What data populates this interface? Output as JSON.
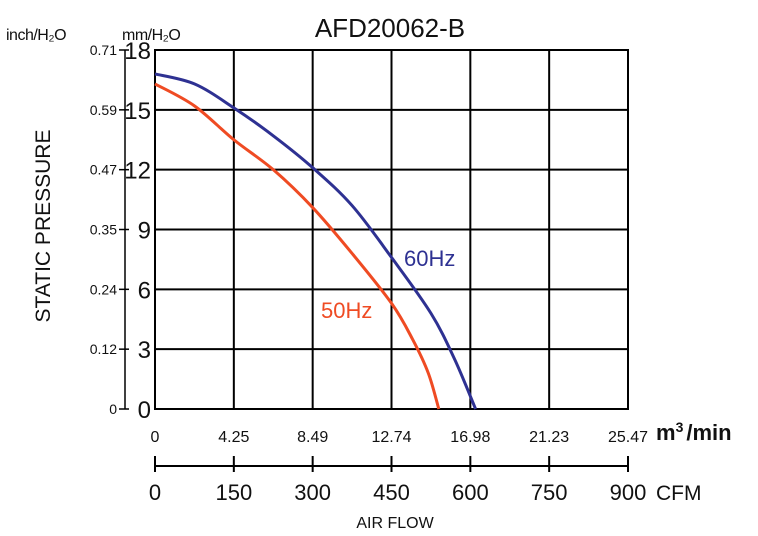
{
  "chart_data": {
    "type": "line",
    "title": "AFD20062-B",
    "ylabel": "STATIC PRESSURE",
    "xlabel": "AIR FLOW",
    "y_unit_left": "inch/H₂O",
    "y_unit_right": "mm/H₂O",
    "x_unit_m3": "m³/min",
    "x_unit_m3_base": "m",
    "x_unit_m3_sup": "3",
    "x_unit_m3_rest": "/min",
    "x_unit_cfm": "CFM",
    "ylim": [
      0,
      18
    ],
    "xlim_cfm": [
      0,
      900
    ],
    "y_ticks_mm": [
      "0",
      "3",
      "6",
      "9",
      "12",
      "15",
      "18"
    ],
    "y_ticks_inch": [
      "0",
      "0.12",
      "0.24",
      "0.35",
      "0.47",
      "0.59",
      "0.71"
    ],
    "x_ticks_m3": [
      "0",
      "4.25",
      "8.49",
      "12.74",
      "16.98",
      "21.23",
      "25.47"
    ],
    "x_ticks_cfm": [
      "0",
      "150",
      "300",
      "450",
      "600",
      "750",
      "900"
    ],
    "grid": true,
    "series": [
      {
        "name": "60Hz",
        "color": "#2e3192",
        "points": [
          [
            0,
            16.8
          ],
          [
            75,
            16.3
          ],
          [
            150,
            15.1
          ],
          [
            225,
            13.7
          ],
          [
            300,
            12.1
          ],
          [
            375,
            10.2
          ],
          [
            450,
            7.6
          ],
          [
            525,
            4.8
          ],
          [
            570,
            2.5
          ],
          [
            610,
            0
          ]
        ]
      },
      {
        "name": "50Hz",
        "color": "#ef4b23",
        "points": [
          [
            0,
            16.3
          ],
          [
            75,
            15.2
          ],
          [
            150,
            13.5
          ],
          [
            225,
            12.0
          ],
          [
            300,
            10.1
          ],
          [
            375,
            7.8
          ],
          [
            450,
            5.3
          ],
          [
            490,
            3.5
          ],
          [
            520,
            1.8
          ],
          [
            540,
            0
          ]
        ]
      }
    ]
  }
}
